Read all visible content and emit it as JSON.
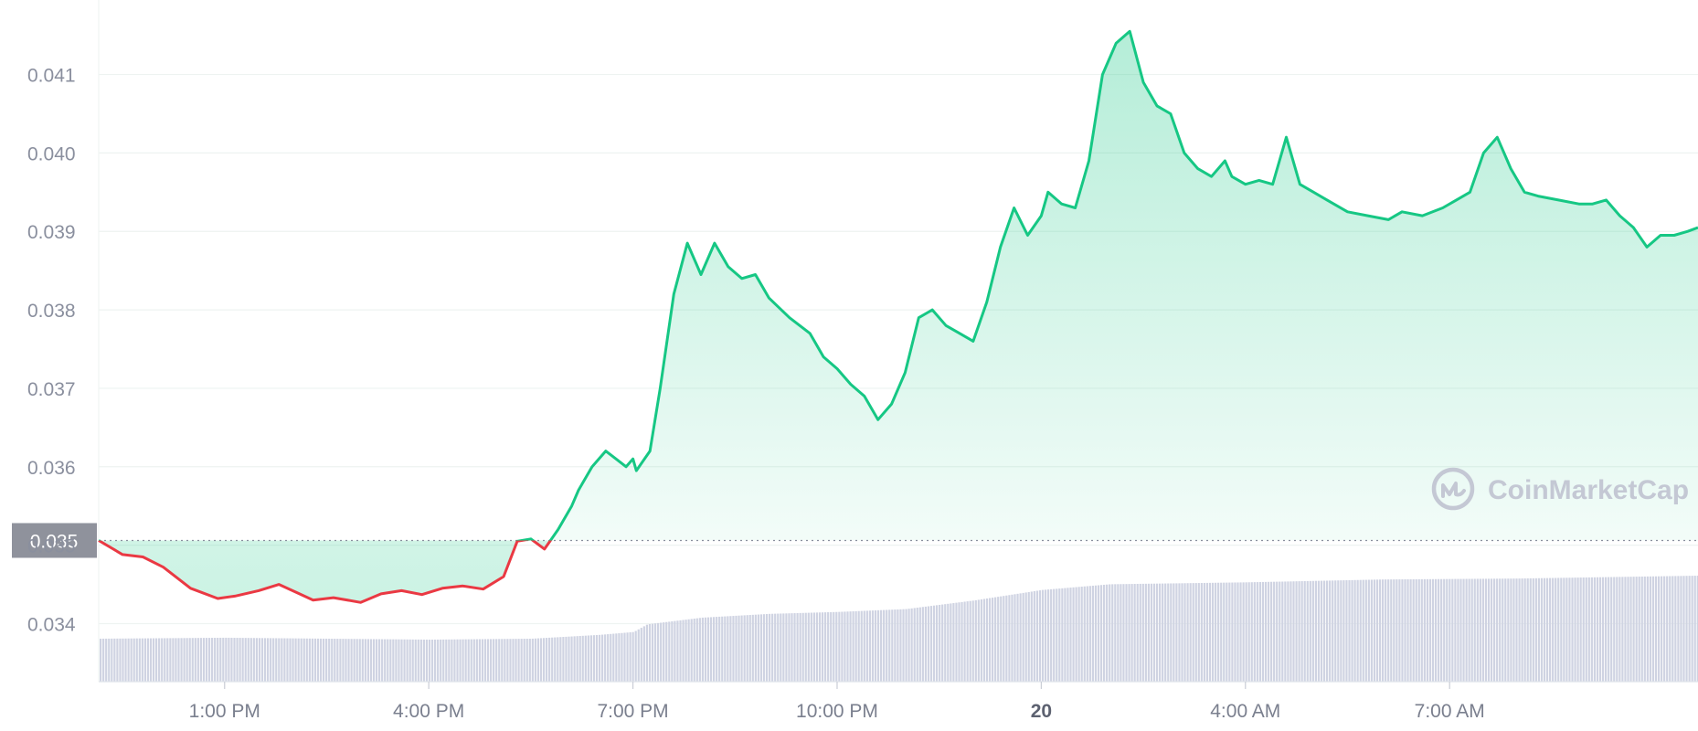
{
  "chart_data": {
    "type": "line",
    "title": "",
    "xlabel": "",
    "ylabel": "",
    "ylim": [
      0.03326,
      0.04195
    ],
    "reference_value": 0.03506,
    "reference_label": "0.035",
    "y_ticks": [
      "0.041",
      "0.040",
      "0.039",
      "0.038",
      "0.037",
      "0.036",
      "0.035",
      "0.034"
    ],
    "y_tick_values": [
      0.041,
      0.04,
      0.039,
      0.038,
      0.037,
      0.036,
      0.035,
      0.034
    ],
    "x_ticks": [
      {
        "label": "1:00 PM",
        "hour": 13,
        "day_marker": false
      },
      {
        "label": "4:00 PM",
        "hour": 16,
        "day_marker": false
      },
      {
        "label": "7:00 PM",
        "hour": 19,
        "day_marker": false
      },
      {
        "label": "10:00 PM",
        "hour": 22,
        "day_marker": false
      },
      {
        "label": "20",
        "hour": 25,
        "day_marker": true
      },
      {
        "label": "4:00 AM",
        "hour": 28,
        "day_marker": false
      },
      {
        "label": "7:00 AM",
        "hour": 31,
        "day_marker": false
      }
    ],
    "x_range_hours": [
      11.15,
      34.65
    ],
    "series": [
      {
        "x": [
          11.15,
          11.5,
          11.8,
          12.1,
          12.5,
          12.9,
          13.15,
          13.5,
          13.8,
          14.1,
          14.3,
          14.6,
          15.0,
          15.3,
          15.6,
          15.9,
          16.2,
          16.5,
          16.8,
          17.1,
          17.3,
          17.5,
          17.7,
          17.9,
          18.1,
          18.2,
          18.4,
          18.6,
          18.75,
          18.9,
          19.0,
          19.05,
          19.25,
          19.4,
          19.6,
          19.8,
          20.0,
          20.2,
          20.4,
          20.6,
          20.8,
          21.0,
          21.3,
          21.6,
          21.8,
          22.0,
          22.2,
          22.4,
          22.6,
          22.8,
          23.0,
          23.2,
          23.4,
          23.6,
          23.8,
          24.0,
          24.2,
          24.4,
          24.6,
          24.8,
          25.0,
          25.1,
          25.3,
          25.5,
          25.7,
          25.9,
          26.1,
          26.3,
          26.5,
          26.7,
          26.9,
          27.1,
          27.3,
          27.5,
          27.7,
          27.8,
          28.0,
          28.2,
          28.4,
          28.6,
          28.8,
          29.0,
          29.2,
          29.5,
          29.8,
          30.1,
          30.3,
          30.6,
          30.9,
          31.1,
          31.3,
          31.5,
          31.7,
          31.9,
          32.1,
          32.3,
          32.6,
          32.9,
          33.1,
          33.3,
          33.5,
          33.7,
          33.9,
          34.1,
          34.3,
          34.5,
          34.65
        ],
        "values": [
          0.03506,
          0.03488,
          0.03485,
          0.03472,
          0.03445,
          0.03432,
          0.03435,
          0.03442,
          0.0345,
          0.03438,
          0.0343,
          0.03433,
          0.03427,
          0.03438,
          0.03442,
          0.03437,
          0.03445,
          0.03448,
          0.03444,
          0.0346,
          0.03505,
          0.03508,
          0.03495,
          0.0352,
          0.0355,
          0.0357,
          0.036,
          0.0362,
          0.0361,
          0.036,
          0.0361,
          0.03595,
          0.0362,
          0.037,
          0.0382,
          0.03885,
          0.03845,
          0.03885,
          0.03855,
          0.0384,
          0.03845,
          0.03815,
          0.0379,
          0.0377,
          0.0374,
          0.03725,
          0.03705,
          0.0369,
          0.0366,
          0.0368,
          0.0372,
          0.0379,
          0.038,
          0.0378,
          0.0377,
          0.0376,
          0.0381,
          0.0388,
          0.0393,
          0.03895,
          0.0392,
          0.0395,
          0.03935,
          0.0393,
          0.0399,
          0.041,
          0.0414,
          0.04155,
          0.0409,
          0.0406,
          0.0405,
          0.04,
          0.0398,
          0.0397,
          0.0399,
          0.0397,
          0.0396,
          0.03965,
          0.0396,
          0.0402,
          0.0396,
          0.0395,
          0.0394,
          0.03925,
          0.0392,
          0.03915,
          0.03925,
          0.0392,
          0.0393,
          0.0394,
          0.0395,
          0.04,
          0.0402,
          0.0398,
          0.0395,
          0.03945,
          0.0394,
          0.03935,
          0.03935,
          0.0394,
          0.0392,
          0.03905,
          0.0388,
          0.03895,
          0.03895,
          0.039,
          0.03905
        ]
      }
    ],
    "volume": {
      "x": [
        11.15,
        13,
        16,
        17.5,
        18.5,
        19.0,
        19.2,
        20,
        21,
        22,
        23,
        24,
        25,
        26,
        28,
        30,
        32,
        34.65
      ],
      "values": [
        0.45,
        0.46,
        0.44,
        0.45,
        0.49,
        0.52,
        0.6,
        0.67,
        0.71,
        0.73,
        0.76,
        0.85,
        0.96,
        1.02,
        1.04,
        1.07,
        1.08,
        1.11
      ]
    },
    "colors": {
      "up_line": "#16c784",
      "down_line": "#ea3943",
      "up_fill": "#16c784",
      "down_fill": "#16c784",
      "volume": "#cfd3e2",
      "grid": "#eef3f1",
      "ref_line": "#8a8f9e",
      "ref_box": "#8f929c"
    },
    "grid": true,
    "watermark": "CoinMarketCap"
  }
}
